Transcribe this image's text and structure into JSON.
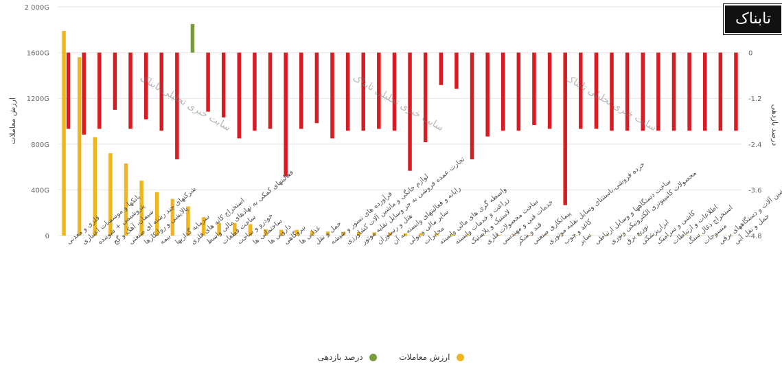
{
  "chart_data": {
    "type": "bar",
    "categories": [
      "فلزی و معدنی",
      "بانکها و موسسات اعتباری",
      "پتروشیمی + شوینده",
      "سیمان، آهک و گچ",
      "شرکتهای چند رشته ای صنعتی",
      "پالایشی و روانکارها",
      "بیمه",
      "سرمایه گذاریها",
      "استخراج کانه های فلزی",
      "فعالیتهای کمکی به نهادهای مالی واسط",
      "ساخت قطعات",
      "خودرو و ساخت",
      "ساختمانی ها",
      "دارویی ها",
      "نیروگاهی",
      "غذایی ها",
      "حمل و نقل",
      "فرآورده های نسوز و شیشه",
      "لوازم خانگی و ماشین آلات کشاورزی",
      "تجارت عمده فروشی به جز وسایل نقلیه موتور",
      "هتل و رستوران",
      "رایانه و فعالیتهای وابسته به آن",
      "سایر مالی و پولی",
      "مخابرات",
      "واسطه گری های مالی وابسته",
      "زراعت و خدمات وابسته",
      "لاستیک و پلاستیک",
      "ساخت محصولات فلزی",
      "خدمات فنی و مهندسی",
      "قند و شکر",
      "پیمانکاری صنعتی",
      "خرده فروشی،باستثنای وسایل نقلیه موتوری",
      "کاغذ و چوب",
      "سایر",
      "ساخت دستگاهها و وسایل ارتباطی",
      "محصولات کامپیوتری الکترونیکی ونوری",
      "توزیع برق",
      "ابزارپزشکی",
      "کاشی و سرامیک",
      "اطلاعات و ارتباطات",
      "استخراج ذغال سنگ",
      "منسوجات",
      "ماشین آلات و دستگاههای برقی",
      "حمل و نقل آبی"
    ],
    "series": [
      {
        "name": "ارزش معاملات",
        "axis": "left",
        "color": "#f0b51f",
        "values": [
          1790,
          1560,
          860,
          720,
          630,
          480,
          380,
          320,
          255,
          160,
          110,
          110,
          100,
          55,
          50,
          50,
          40,
          35,
          32,
          30,
          28,
          25,
          20,
          20,
          18,
          12,
          10,
          8,
          6,
          5,
          5,
          4,
          4,
          4,
          3,
          3,
          3,
          2,
          2,
          2,
          2,
          2,
          1,
          1
        ]
      },
      {
        "name": "درصد بازدهی",
        "axis": "right",
        "color_positive": "#7a9a3e",
        "color_negative": "#d81c22",
        "values": [
          -2.0,
          -2.15,
          -2.0,
          -1.5,
          -2.0,
          -1.75,
          -2.05,
          -2.8,
          0.75,
          -1.55,
          -1.7,
          -2.25,
          -2.05,
          -2.0,
          -3.25,
          -2.0,
          -1.85,
          -2.25,
          -2.05,
          -2.05,
          -2.0,
          -2.05,
          -3.1,
          -2.35,
          -0.85,
          -0.95,
          -2.8,
          -2.2,
          -2.05,
          -2.05,
          -1.9,
          -2.0,
          -4.0,
          -2.0,
          -2.0,
          -2.05,
          -2.05,
          -2.05,
          -2.05,
          -2.05,
          -2.05,
          -2.05,
          -2.05,
          -2.05
        ]
      }
    ],
    "ylabel": "ارزش معاملات",
    "ylabel_right": "درصد بازدهی",
    "ylim": [
      0,
      2000
    ],
    "ylim_right": [
      -4.8,
      1.2
    ],
    "yticks": [
      "0",
      "400G",
      "800G",
      "1200G",
      "1600G",
      "2 000G"
    ],
    "yticks_right": [
      "-4.8",
      "-3.6",
      "-2.4",
      "-1.2",
      "0",
      "1.2"
    ],
    "grid": true,
    "legend_position": "bottom"
  },
  "legend": [
    {
      "label": "ارزش معاملات",
      "color": "#f0b51f"
    },
    {
      "label": "درصد بازدهی",
      "color": "#7a9a3e"
    }
  ],
  "logo": "تابناک",
  "watermark": "سایت خبری تحلیلی تابناک"
}
